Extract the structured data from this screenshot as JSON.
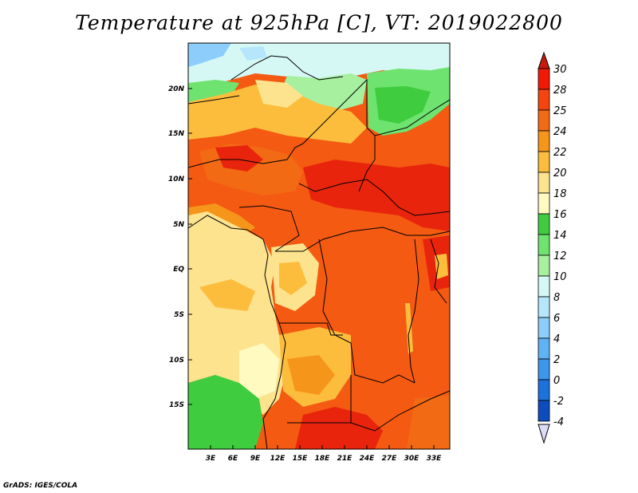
{
  "title": "Temperature at 925hPa [C], VT: 2019022800",
  "footer": "GrADS: IGES/COLA",
  "axes": {
    "lon_labels": [
      "3E",
      "6E",
      "9E",
      "12E",
      "15E",
      "18E",
      "21E",
      "24E",
      "27E",
      "30E",
      "33E"
    ],
    "lat_labels": [
      "20N",
      "15N",
      "10N",
      "5N",
      "EQ",
      "5S",
      "10S",
      "15S"
    ]
  },
  "colorbar": {
    "labels": [
      "30",
      "28",
      "25",
      "24",
      "22",
      "20",
      "18",
      "16",
      "14",
      "12",
      "10",
      "8",
      "6",
      "4",
      "2",
      "0",
      "-2",
      "-4"
    ],
    "colors": [
      "#f21a05",
      "#f5450f",
      "#f26a14",
      "#f5961a",
      "#fcbd3d",
      "#fde38e",
      "#fffac0",
      "#3fcd3f",
      "#6fe36f",
      "#a6f0a0",
      "#d5f8f5",
      "#b5e6fb",
      "#8ccdfb",
      "#5fb2f4",
      "#3c96ec",
      "#1c72dc",
      "#0d4cbe",
      "#061a88"
    ],
    "top_arrow_color": "#c81a0a",
    "bottom_arrow_color": "#dcdcf8"
  },
  "colors": {
    "hot": "#e8250c",
    "warm": "#f45a12",
    "orange": "#f5961a",
    "yellow_orange": "#fcbd3d",
    "pale_yellow": "#fde38e",
    "cream": "#fffac0",
    "green": "#3fcd3f",
    "light_green": "#6fe36f",
    "cyan_pale": "#d5f8f5",
    "blue_light": "#8ccdfb"
  }
}
